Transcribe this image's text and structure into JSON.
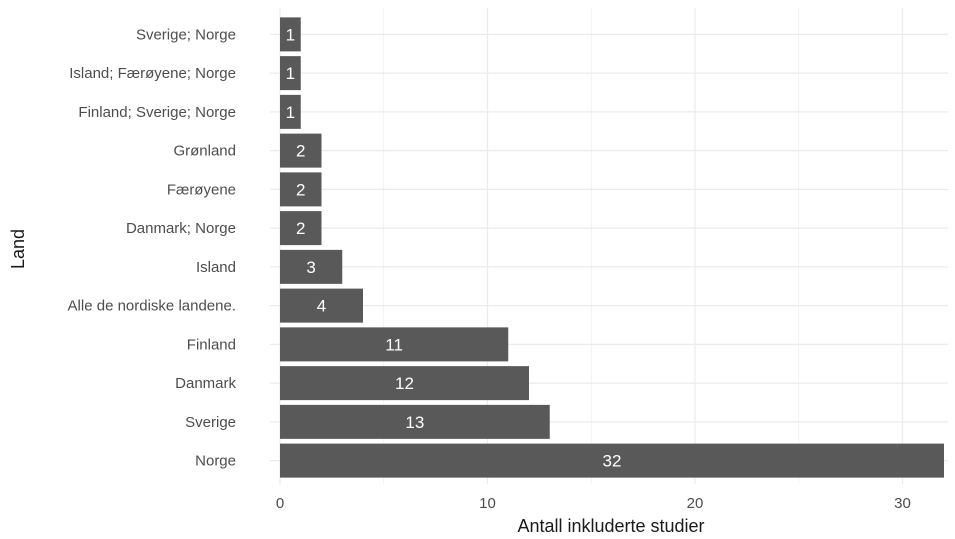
{
  "chart_data": {
    "type": "bar",
    "orientation": "horizontal",
    "categories": [
      "Norge",
      "Sverige",
      "Danmark",
      "Finland",
      "Alle de nordiske landene.",
      "Island",
      "Danmark; Norge",
      "Færøyene",
      "Grønland",
      "Finland; Sverige; Norge",
      "Island; Færøyene; Norge",
      "Sverige; Norge"
    ],
    "values": [
      32,
      13,
      12,
      11,
      4,
      3,
      2,
      2,
      2,
      1,
      1,
      1
    ],
    "xlabel": "Antall inkluderte studier",
    "ylabel": "Land",
    "xlim": [
      0,
      32
    ],
    "xticks": [
      0,
      10,
      20,
      30
    ],
    "grid": true,
    "legend": "none",
    "data_labels": true,
    "bar_color": "#595959",
    "grid_color": "#ebebeb"
  }
}
